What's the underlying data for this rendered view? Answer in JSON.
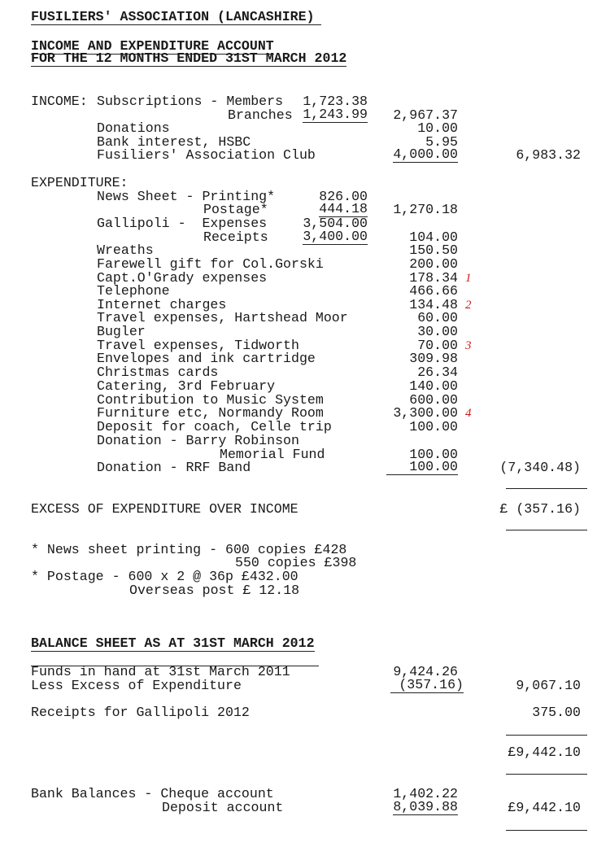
{
  "header": {
    "org": "FUSILIERS' ASSOCIATION (LANCASHIRE)",
    "title1": "INCOME AND EXPENDITURE ACCOUNT",
    "title2": "FOR THE 12 MONTHS ENDED 31ST MARCH 2012"
  },
  "income": {
    "label": "INCOME:",
    "subs_label": "Subscriptions - Members",
    "members": "1,723.38",
    "branches_label": "Branches",
    "branches": "1,243.99",
    "subs_total": "2,967.37",
    "donations_label": "Donations",
    "donations": "10.00",
    "interest_label": "Bank interest, HSBC",
    "interest": "5.95",
    "club_label": "Fusiliers' Association Club",
    "club": "4,000.00",
    "total": "6,983.32"
  },
  "expenditure": {
    "label": "EXPENDITURE:",
    "news_label": "News Sheet - Printing*",
    "printing": "826.00",
    "postage_label": "Postage*",
    "postage": "444.18",
    "news_total": "1,270.18",
    "gallipoli_label": "Gallipoli -  Expenses",
    "gallipoli_exp": "3,504.00",
    "receipts_label": "Receipts",
    "gallipoli_rec": "3,400.00",
    "gallipoli_net": "104.00",
    "items": [
      {
        "label": "Wreaths",
        "amount": "150.50"
      },
      {
        "label": "Farewell gift for Col.Gorski",
        "amount": "200.00"
      },
      {
        "label": "Capt.O'Grady expenses",
        "amount": "178.34",
        "note": "1"
      },
      {
        "label": "Telephone",
        "amount": "466.66"
      },
      {
        "label": "Internet charges",
        "amount": "134.48",
        "note": "2"
      },
      {
        "label": "Travel expenses, Hartshead Moor",
        "amount": "60.00"
      },
      {
        "label": "Bugler",
        "amount": "30.00"
      },
      {
        "label": "Travel expenses, Tidworth",
        "amount": "70.00",
        "note": "3"
      },
      {
        "label": "Envelopes and ink cartridge",
        "amount": "309.98"
      },
      {
        "label": "Christmas cards",
        "amount": "26.34"
      },
      {
        "label": "Catering, 3rd February",
        "amount": "140.00"
      },
      {
        "label": "Contribution to Music System",
        "amount": "600.00"
      },
      {
        "label": "Furniture etc, Normandy Room",
        "amount": "3,300.00",
        "note": "4"
      },
      {
        "label": "Deposit for coach, Celle trip",
        "amount": "100.00"
      },
      {
        "label": "Donation - Barry Robinson",
        "label2": "Memorial Fund",
        "amount": "100.00"
      },
      {
        "label": "Donation - RRF Band",
        "amount": "100.00"
      }
    ],
    "total": "(7,340.48)"
  },
  "excess": {
    "label": "EXCESS OF EXPENDITURE OVER INCOME",
    "amount": "£ (357.16)"
  },
  "footnotes": [
    "* News sheet printing - 600 copies £428",
    "550 copies £398",
    "* Postage - 600 x 2 @ 36p £432.00",
    "Overseas post £ 12.18"
  ],
  "balance": {
    "title": "BALANCE SHEET AS AT 31ST MARCH 2012",
    "funds_label": "Funds in hand at 31st March 2011",
    "funds": "9,424.26",
    "less_label": "Less Excess of Expenditure",
    "less": "(357.16)",
    "net": "9,067.10",
    "gallipoli_label": "Receipts for Gallipoli 2012",
    "gallipoli": "375.00",
    "total": "£9,442.10",
    "bank_label": "Bank Balances - Cheque account",
    "cheque": "1,402.22",
    "deposit_label": "Deposit account",
    "deposit": "8,039.88",
    "bank_total": "£9,442.10"
  },
  "colors": {
    "annotation": "#d01818"
  }
}
